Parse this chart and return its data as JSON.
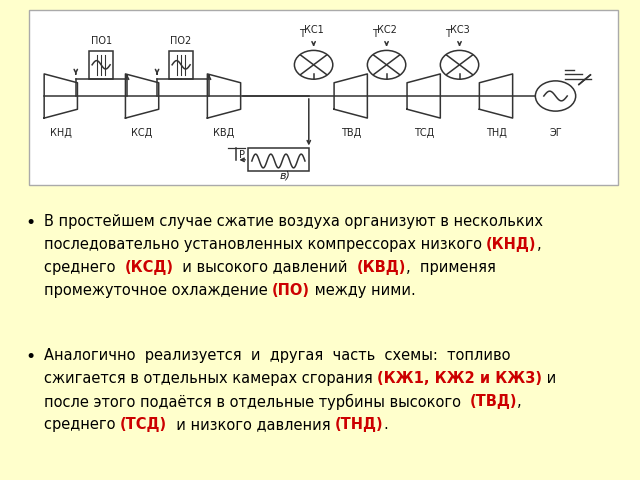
{
  "background_color": "#ffffcc",
  "font_size": 10.5,
  "bullet_marker": "•",
  "text_lines": [
    [
      {
        "t": "В простейшем случае сжатие воздуха организуют в нескольких",
        "c": "#000000",
        "b": false
      }
    ],
    [
      {
        "t": "последовательно установленных компрессорах низкого ",
        "c": "#000000",
        "b": false
      },
      {
        "t": "(КНД)",
        "c": "#cc0000",
        "b": true
      },
      {
        "t": ",",
        "c": "#000000",
        "b": false
      }
    ],
    [
      {
        "t": "среднего  ",
        "c": "#000000",
        "b": false
      },
      {
        "t": "(КСД)",
        "c": "#cc0000",
        "b": true
      },
      {
        "t": "  и высокого давлений  ",
        "c": "#000000",
        "b": false
      },
      {
        "t": "(КВД)",
        "c": "#cc0000",
        "b": true
      },
      {
        "t": ",  применяя",
        "c": "#000000",
        "b": false
      }
    ],
    [
      {
        "t": "промежуточное охлаждение ",
        "c": "#000000",
        "b": false
      },
      {
        "t": "(ПО)",
        "c": "#cc0000",
        "b": true
      },
      {
        "t": " между ними.",
        "c": "#000000",
        "b": false
      }
    ]
  ],
  "text_lines2": [
    [
      {
        "t": "Аналогично  реализуется  и  другая  часть  схемы:  топливо",
        "c": "#000000",
        "b": false
      }
    ],
    [
      {
        "t": "сжигается в отдельных камерах сгорания ",
        "c": "#000000",
        "b": false
      },
      {
        "t": "(КЖ1, КЖ2 и КЖ3)",
        "c": "#cc0000",
        "b": true
      },
      {
        "t": " и",
        "c": "#000000",
        "b": false
      }
    ],
    [
      {
        "t": "после этого подаётся в отдельные турбины высокого  ",
        "c": "#000000",
        "b": false
      },
      {
        "t": "(ТВД)",
        "c": "#cc0000",
        "b": true
      },
      {
        "t": ",",
        "c": "#000000",
        "b": false
      }
    ],
    [
      {
        "t": "среднего ",
        "c": "#000000",
        "b": false
      },
      {
        "t": "(ТСД)",
        "c": "#cc0000",
        "b": true
      },
      {
        "t": "  и низкого давления ",
        "c": "#000000",
        "b": false
      },
      {
        "t": "(ТНД)",
        "c": "#cc0000",
        "b": true
      },
      {
        "t": ".",
        "c": "#000000",
        "b": false
      }
    ]
  ],
  "diagram_bg": "#ffffff",
  "diagram_border": "#aaaaaa",
  "line_color": "#333333",
  "label_color": "#222222"
}
